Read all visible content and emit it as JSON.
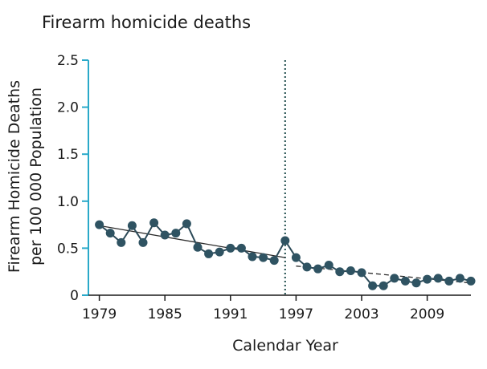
{
  "chart_data": {
    "type": "line",
    "title": "Firearm homicide deaths",
    "xlabel": "Calendar Year",
    "ylabel_lines": [
      "Firearm Homicide Deaths",
      "per 100 000 Population"
    ],
    "xlim": [
      1978,
      2013
    ],
    "ylim": [
      0,
      2.5
    ],
    "x_ticks": [
      1979,
      1985,
      1991,
      1997,
      2003,
      2009
    ],
    "y_ticks": [
      "0",
      "0.5",
      "1.0",
      "1.5",
      "2.0",
      "2.5"
    ],
    "grid": false,
    "vertical_marker_year": 1996,
    "series": [
      {
        "x": [
          1979,
          1980,
          1981,
          1982,
          1983,
          1984,
          1985,
          1986,
          1987,
          1988,
          1989,
          1990,
          1991,
          1992,
          1993,
          1994,
          1995,
          1996,
          1997,
          1998,
          1999,
          2000,
          2001,
          2002,
          2003,
          2004,
          2005,
          2006,
          2007,
          2008,
          2009,
          2010,
          2011,
          2012,
          2013
        ],
        "y": [
          0.75,
          0.66,
          0.56,
          0.74,
          0.56,
          0.77,
          0.64,
          0.66,
          0.76,
          0.51,
          0.44,
          0.46,
          0.5,
          0.5,
          0.41,
          0.4,
          0.37,
          0.58,
          0.4,
          0.3,
          0.28,
          0.32,
          0.25,
          0.26,
          0.24,
          0.1,
          0.1,
          0.18,
          0.15,
          0.13,
          0.17,
          0.18,
          0.15,
          0.18,
          0.15
        ]
      }
    ],
    "trend_lines": [
      {
        "style": "solid",
        "x": [
          1979,
          1996
        ],
        "y": [
          0.74,
          0.4
        ]
      },
      {
        "style": "dashed",
        "x": [
          1997,
          2013
        ],
        "y": [
          0.31,
          0.13
        ]
      }
    ],
    "colors": {
      "line": "#2c4a58",
      "marker": "#2f5362",
      "y_axis": "#29a9c9",
      "x_axis": "#1a1a1a",
      "trend": "#2a2a2a",
      "vertical_marker": "#1d4b4b"
    }
  }
}
